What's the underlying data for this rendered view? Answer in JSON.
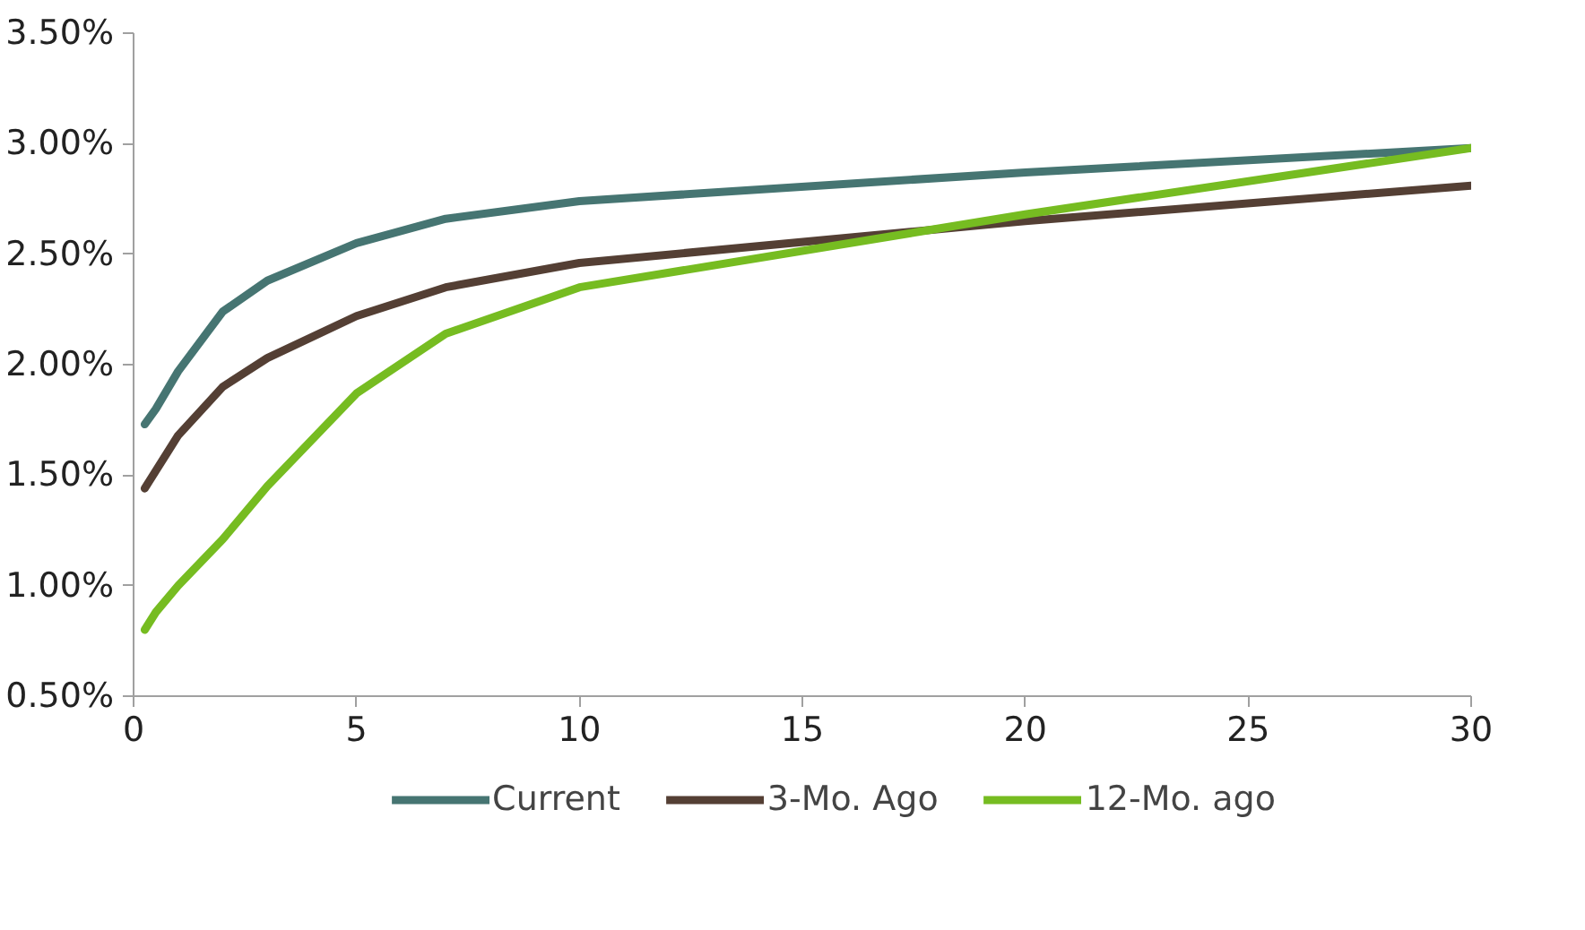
{
  "chart_data": {
    "type": "line",
    "x": [
      0.25,
      0.5,
      1,
      2,
      3,
      5,
      7,
      10,
      20,
      30
    ],
    "series": [
      {
        "name": "Current",
        "color": "#467572",
        "values": [
          1.73,
          1.8,
          1.97,
          2.24,
          2.38,
          2.55,
          2.66,
          2.74,
          2.87,
          2.98
        ]
      },
      {
        "name": "3-Mo. Ago",
        "color": "#543f34",
        "values": [
          1.44,
          1.52,
          1.68,
          1.9,
          2.03,
          2.22,
          2.35,
          2.46,
          2.65,
          2.81
        ]
      },
      {
        "name": "12-Mo. ago",
        "color": "#76bc21",
        "values": [
          0.8,
          0.88,
          1.0,
          1.21,
          1.45,
          1.87,
          2.14,
          2.35,
          2.68,
          2.98
        ]
      }
    ],
    "xlim": [
      0,
      30
    ],
    "xticks": [
      0,
      5,
      10,
      15,
      20,
      25,
      30
    ],
    "ylim": [
      0.5,
      3.5
    ],
    "yticks": [
      {
        "value": 0.5,
        "label": "0.50%"
      },
      {
        "value": 1.0,
        "label": "1.00%"
      },
      {
        "value": 1.5,
        "label": "1.50%"
      },
      {
        "value": 2.0,
        "label": "2.00%"
      },
      {
        "value": 2.5,
        "label": "2.50%"
      },
      {
        "value": 3.0,
        "label": "3.00%"
      },
      {
        "value": 3.5,
        "label": "3.50%"
      }
    ],
    "grid": false,
    "legend": "bottom",
    "marker": "none",
    "line_style": "solid"
  }
}
